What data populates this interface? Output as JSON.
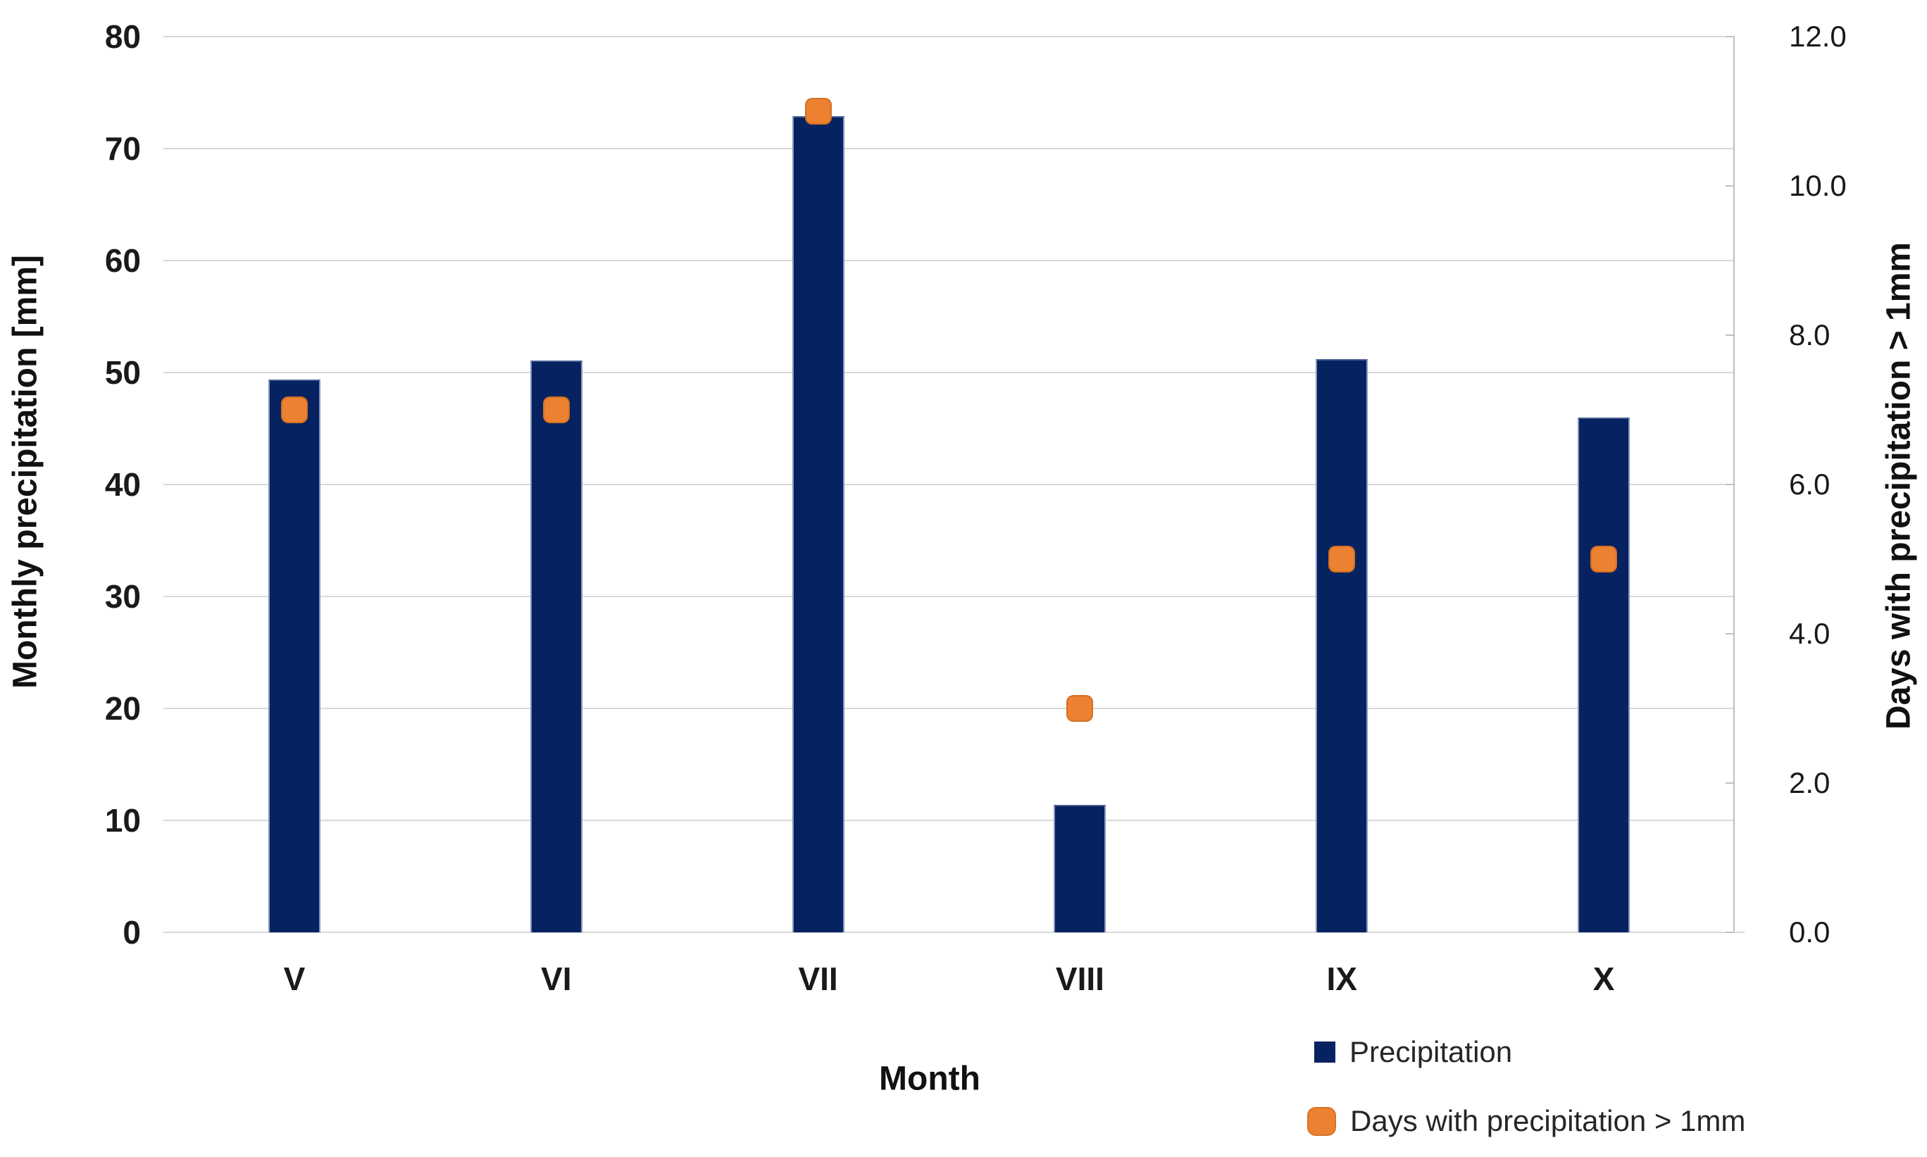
{
  "chart_data": {
    "type": "bar",
    "title": "",
    "categories": [
      "V",
      "VI",
      "VII",
      "VIII",
      "IX",
      "X"
    ],
    "series": [
      {
        "name": "Precipitation",
        "type": "bar",
        "axis": "left",
        "color": "#062260",
        "values": [
          49.4,
          51.1,
          72.9,
          11.4,
          51.2,
          46.0
        ]
      },
      {
        "name": "Days with precipitation > 1mm",
        "type": "scatter",
        "marker": "rounded-square",
        "axis": "right",
        "color": "#ed8132",
        "values": [
          7.0,
          7.0,
          11.0,
          3.0,
          5.0,
          5.0
        ]
      }
    ],
    "xlabel": "Month",
    "left_axis": {
      "label": "Monthly precipitation [mm]",
      "min": 0,
      "max": 80,
      "tick_step": 10
    },
    "right_axis": {
      "label": "Days with precipitation > 1mm",
      "min": 0,
      "max": 12,
      "tick_step": 2,
      "tick_format": "one-decimal"
    },
    "grid": true,
    "legend_position": "bottom-right",
    "colors": {
      "bar": "#062260",
      "marker": "#ed8132",
      "gridline": "#d9d9d9",
      "axis_line": "#bfbfbf",
      "text": "#1a1a1a"
    }
  }
}
